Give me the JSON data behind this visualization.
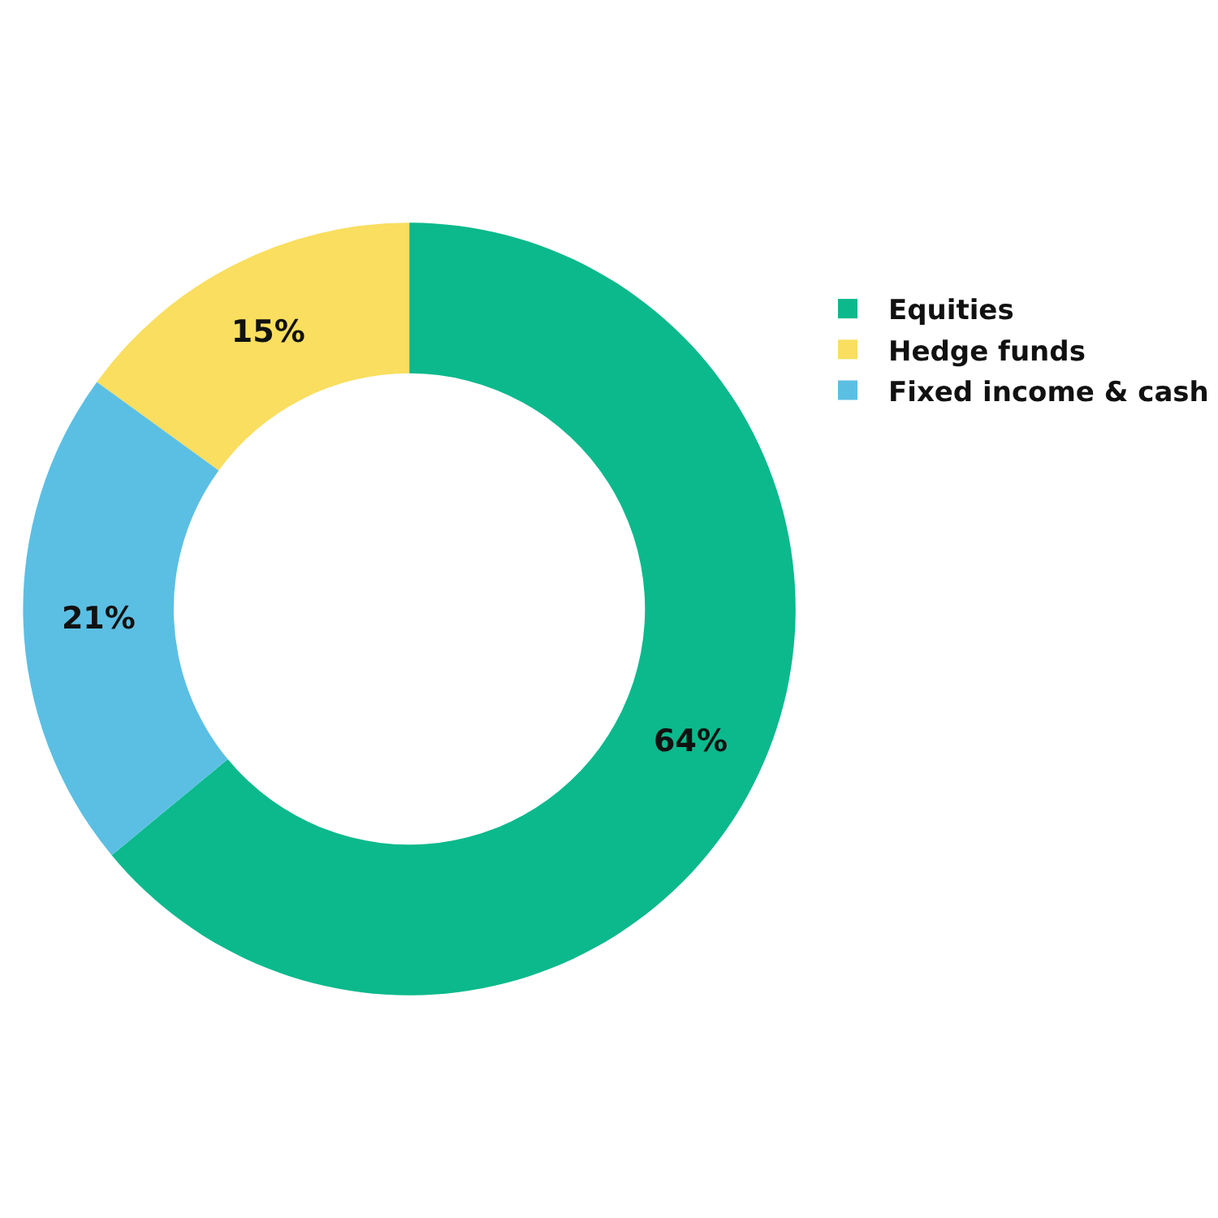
{
  "chart_data": {
    "type": "donut",
    "categories": [
      "Equities",
      "Hedge funds",
      "Fixed income & cash"
    ],
    "values": [
      64,
      15,
      21
    ],
    "colors": [
      "#0bb98c",
      "#f9de5f",
      "#5bbfe3"
    ],
    "value_labels": [
      "64%",
      "15%",
      "21%"
    ],
    "legend": "right"
  }
}
